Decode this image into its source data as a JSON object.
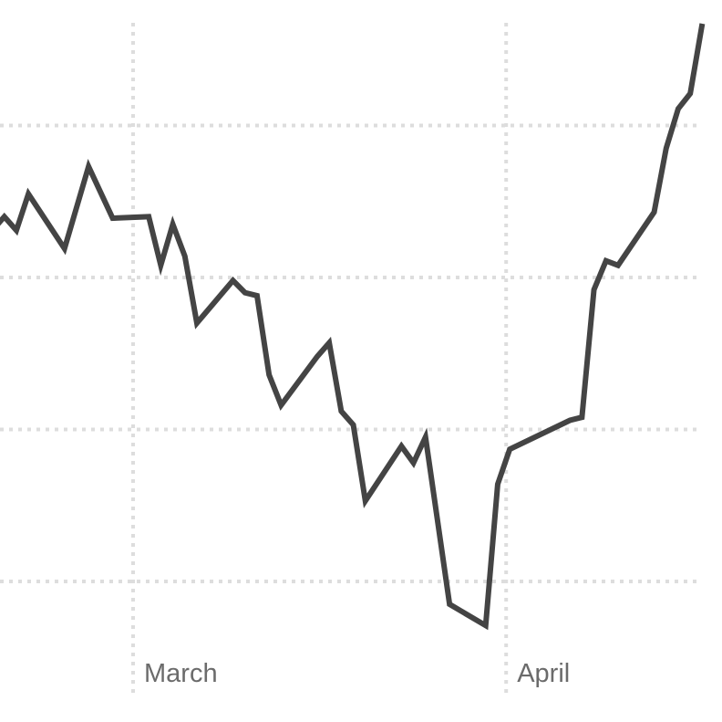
{
  "chart_data": {
    "type": "line",
    "title": "",
    "xlabel": "",
    "ylabel": "",
    "x_tick_labels": [
      {
        "date": "2020-03-01",
        "label": "March"
      },
      {
        "date": "2020-04-01",
        "label": "April"
      }
    ],
    "y_gridlines": [
      1,
      2,
      3,
      4
    ],
    "y_tick_labels_shown": false,
    "grid": "dotted",
    "line_color": "#444444",
    "grid_color": "#dddddd",
    "series": [
      {
        "x": [
          "2020-02-18",
          "2020-02-19",
          "2020-02-20",
          "2020-02-21",
          "2020-02-24",
          "2020-02-26",
          "2020-02-28",
          "2020-03-02",
          "2020-03-03",
          "2020-03-04",
          "2020-03-05",
          "2020-03-06",
          "2020-03-09",
          "2020-03-10",
          "2020-03-11",
          "2020-03-12",
          "2020-03-13",
          "2020-03-16",
          "2020-03-17",
          "2020-03-18",
          "2020-03-19",
          "2020-03-20",
          "2020-03-23",
          "2020-03-24",
          "2020-03-25",
          "2020-03-27",
          "2020-03-30",
          "2020-03-31",
          "2020-04-01",
          "2020-04-06",
          "2020-04-07",
          "2020-04-08",
          "2020-04-09",
          "2020-04-10",
          "2020-04-13",
          "2020-04-14",
          "2020-04-15",
          "2020-04-16",
          "2020-04-17"
        ],
        "y": [
          3.31,
          3.4,
          3.31,
          3.55,
          3.19,
          3.73,
          3.39,
          3.4,
          3.08,
          3.35,
          3.14,
          2.7,
          2.98,
          2.9,
          2.88,
          2.36,
          2.16,
          2.48,
          2.57,
          2.12,
          2.03,
          1.53,
          1.89,
          1.78,
          1.95,
          0.85,
          0.71,
          1.64,
          1.87,
          2.06,
          2.08,
          2.92,
          3.11,
          3.08,
          3.43,
          3.85,
          4.11,
          4.21,
          4.67
        ]
      }
    ]
  }
}
